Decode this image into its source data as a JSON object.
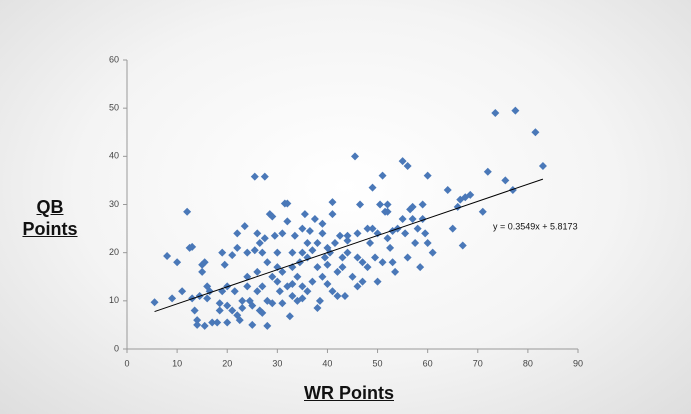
{
  "chart_data": {
    "type": "scatter",
    "x_label": "WR Points",
    "y_label": "QB Points",
    "annotation": "y = 0.3549x + 5.8173",
    "xlim": [
      0,
      90
    ],
    "ylim": [
      0,
      60
    ],
    "xticks": [
      0,
      10,
      20,
      30,
      40,
      50,
      60,
      70,
      80,
      90
    ],
    "yticks": [
      0,
      10,
      20,
      30,
      40,
      50,
      60
    ],
    "color": "#4a78b8",
    "trendline": {
      "x": [
        5.5,
        83
      ],
      "y": [
        7.77,
        35.27
      ],
      "color": "#000000"
    },
    "x": [
      5.5,
      8,
      9,
      10,
      11,
      12,
      12.5,
      13,
      13,
      13.5,
      14,
      14,
      14.5,
      15,
      15,
      15.5,
      15.5,
      16,
      16.5,
      17,
      18,
      18.5,
      18.5,
      19,
      19.5,
      20,
      20,
      21,
      21,
      21.5,
      22,
      22,
      22,
      22.5,
      23,
      23,
      23.5,
      24,
      24,
      24.5,
      25,
      25,
      25.5,
      25.5,
      26,
      26,
      26.5,
      26.5,
      27,
      27,
      27.5,
      27.5,
      28,
      28,
      28,
      28.5,
      29,
      29,
      29,
      29.5,
      30,
      30,
      30,
      30.5,
      31,
      31,
      31,
      31.5,
      32,
      32,
      32,
      32.5,
      33,
      33,
      33,
      33.5,
      34,
      34,
      34.5,
      35,
      35,
      35,
      35.5,
      36,
      36,
      36.5,
      37,
      37,
      37.5,
      38,
      38,
      38,
      38.5,
      39,
      39,
      39.5,
      40,
      40,
      40,
      40.5,
      41,
      41,
      41,
      41.5,
      42,
      42,
      42.5,
      43,
      43,
      43.5,
      44,
      44,
      45,
      45.5,
      46,
      46,
      46.5,
      47,
      47,
      48,
      48.5,
      49,
      49,
      49.5,
      50,
      50,
      50.5,
      51,
      51,
      51.5,
      52,
      52,
      52.5,
      53,
      53,
      53.5,
      54,
      55,
      55,
      55.5,
      56,
      56,
      56.5,
      57,
      57,
      57.5,
      58,
      58.5,
      59,
      59,
      59.5,
      60,
      60,
      61,
      64,
      65,
      66,
      66.5,
      67,
      67.5,
      68.5,
      71,
      72,
      73.5,
      75.5,
      77,
      77.5,
      81.5,
      83,
      19,
      24,
      27,
      33,
      36,
      44,
      48,
      16,
      20,
      26,
      35,
      39,
      46,
      52
    ],
    "values": [
      9.7,
      19.3,
      10.5,
      18,
      12,
      28.5,
      21,
      21.2,
      10.5,
      8,
      5,
      6,
      11,
      17.5,
      16,
      4.8,
      18,
      10.5,
      12,
      5.5,
      5.5,
      8,
      9.5,
      12,
      17.5,
      13,
      5.5,
      19.5,
      8,
      12,
      24,
      21,
      7,
      6,
      10,
      8.5,
      25.5,
      20,
      13,
      10,
      9,
      5,
      35.8,
      20.5,
      16,
      12,
      22,
      8,
      7.5,
      13,
      35.8,
      23,
      18,
      4.8,
      10,
      28,
      27.5,
      15,
      9.5,
      23.5,
      20,
      17,
      14,
      12,
      24,
      16,
      9.5,
      30.2,
      30.2,
      26.5,
      13,
      6.8,
      20,
      11,
      17,
      23.5,
      15,
      10,
      18,
      25,
      20,
      13,
      28,
      22,
      12,
      24.5,
      20.5,
      14,
      27,
      8.5,
      17,
      22,
      10,
      24,
      15,
      19,
      21,
      13.5,
      17.5,
      20,
      28,
      30.5,
      12,
      22,
      16,
      11,
      23.5,
      19,
      17,
      11,
      20,
      23.5,
      15,
      40,
      19,
      13,
      30,
      18,
      14,
      17,
      22,
      33.5,
      25,
      19,
      24,
      14,
      30,
      18,
      36,
      28.5,
      28.5,
      23,
      21,
      24.5,
      18,
      16,
      25,
      39,
      27,
      24,
      38,
      19,
      29,
      29.5,
      27,
      22,
      25,
      17,
      30,
      27,
      24,
      36,
      22,
      20,
      33,
      25,
      29.5,
      31,
      21.5,
      31.5,
      32,
      28.5,
      36.8,
      49,
      35,
      33,
      49.5,
      45,
      38,
      20,
      15,
      20,
      13.5,
      19,
      22.5,
      25,
      13,
      9,
      24,
      10.5,
      26,
      24,
      30
    ]
  }
}
